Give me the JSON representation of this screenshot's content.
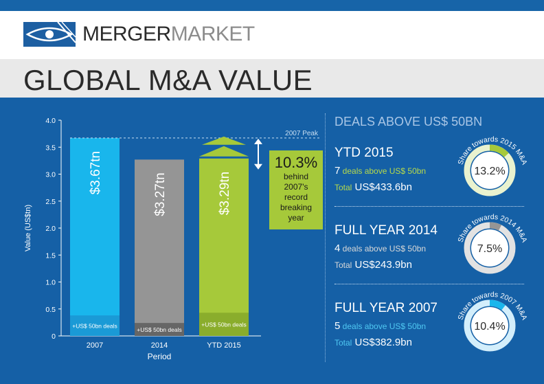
{
  "brand": {
    "logo_part1": "MERGER",
    "logo_part2": "MARKET"
  },
  "title": "GLOBAL M&A VALUE",
  "chart_data": {
    "type": "bar",
    "categories": [
      "2007",
      "2014",
      "YTD 2015"
    ],
    "values": [
      3.67,
      3.27,
      3.29
    ],
    "segment_values": [
      0.38,
      0.24,
      0.43
    ],
    "bar_labels": [
      "$3.67tn",
      "$3.27tn",
      "$3.29tn"
    ],
    "segment_label": "+US$ 50bn deals",
    "xlabel": "Period",
    "ylabel": "Value (US$tn)",
    "ylim": [
      0,
      4.0
    ],
    "yticks": [
      "0",
      "0.5",
      "1.0",
      "1.5",
      "2.0",
      "2.5",
      "3.0",
      "3.5",
      "4.0"
    ],
    "reference_line": {
      "value": 3.67,
      "label": "2007 Peak"
    },
    "callout": {
      "value": "10.3%",
      "text_lines": [
        "behind",
        "2007's",
        "record",
        "breaking",
        "year"
      ]
    },
    "colors": {
      "2007": "#19b6ec",
      "2007_seg": "#1a9ad6",
      "2014": "#959595",
      "2014_seg": "#666666",
      "YTD 2015": "#a6c93a",
      "YTD 2015_seg": "#8aad2c"
    }
  },
  "right": {
    "heading": "DEALS ABOVE US$ 50BN",
    "sections": [
      {
        "title": "YTD 2015",
        "count": "7",
        "count_text": " deals above US$ 50bn",
        "total_label": "Total",
        "total_value": " US$433.6bn",
        "ring_label": "Share towards 2015 M&A",
        "percent": "13.2%",
        "share": 0.132,
        "ring_color": "#a6c93a",
        "ring_track": "#e9f2cf",
        "accent": "#b7da4a"
      },
      {
        "title": "FULL YEAR 2014",
        "count": "4",
        "count_text": " deals above US$ 50bn",
        "total_label": "Total",
        "total_value": " US$243.9bn",
        "ring_label": "Share towards 2014 M&A",
        "percent": "7.5%",
        "share": 0.075,
        "ring_color": "#959595",
        "ring_track": "#e2e2e2",
        "accent": "#d8d8d8"
      },
      {
        "title": "FULL YEAR 2007",
        "count": "5",
        "count_text": " deals above US$ 50bn",
        "total_label": "Total",
        "total_value": " US$382.9bn",
        "ring_label": "Share towards 2007 M&A",
        "percent": "10.4%",
        "share": 0.104,
        "ring_color": "#19b6ec",
        "ring_track": "#d3eefb",
        "accent": "#4fc8f2"
      }
    ]
  }
}
